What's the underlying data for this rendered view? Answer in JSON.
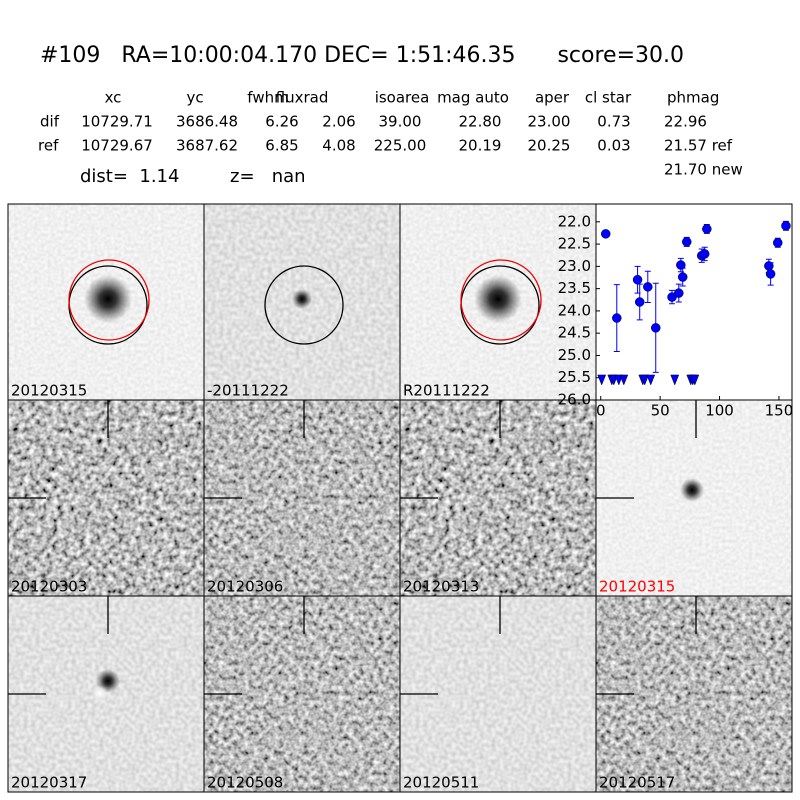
{
  "header": {
    "title": "#109   RA=10:00:04.170 DEC= 1:51:46.35      score=30.0"
  },
  "table": {
    "columns": [
      "xc",
      "yc",
      "fwhm",
      "fluxrad",
      "isoarea",
      "mag auto",
      "aper",
      "cl star",
      "phmag"
    ],
    "rows": [
      [
        "dif",
        "10729.71",
        "3686.48",
        "6.26",
        "2.06",
        "39.00",
        "22.80",
        "23.00",
        "0.73",
        "22.96"
      ],
      [
        "ref",
        "10729.67",
        "3687.62",
        "6.85",
        "4.08",
        "225.00",
        "20.19",
        "20.25",
        "0.03",
        "21.57 ref"
      ]
    ],
    "extra": "21.70 new"
  },
  "info": {
    "dist": "dist=  1.14",
    "z": "z=   nan"
  },
  "stamps": [
    {
      "label": "20120315"
    },
    {
      "label": "-20111222"
    },
    {
      "label": "R20111222"
    },
    {
      "label": "20120303"
    },
    {
      "label": "20120306"
    },
    {
      "label": "20120313"
    },
    {
      "label": "20120315",
      "label_color": "#ff0000"
    },
    {
      "label": "20120317"
    },
    {
      "label": "20120508"
    },
    {
      "label": "20120511"
    },
    {
      "label": "20120517"
    }
  ],
  "chart_data": {
    "type": "scatter",
    "series": [
      {
        "color": "#0000ff",
        "marker": "circle",
        "x": [
          4.2,
          13.5,
          31,
          32.8,
          39.6,
          46.3,
          60,
          65.7,
          67.4,
          69,
          72.4,
          85,
          87.5,
          89.3,
          141.5,
          143,
          149,
          155.9
        ],
        "values": [
          22.27,
          24.16,
          23.3,
          23.8,
          23.46,
          24.38,
          23.69,
          23.6,
          22.97,
          23.24,
          22.45,
          22.76,
          22.72,
          22.16,
          22.99,
          23.17,
          22.47,
          22.09
        ],
        "errors": [
          0.05,
          0.75,
          0.3,
          0.4,
          0.35,
          1.0,
          0.15,
          0.2,
          0.15,
          0.2,
          0.1,
          0.15,
          0.15,
          0.1,
          0.15,
          0.25,
          0.1,
          0.1
        ]
      },
      {
        "color": "#0000ff",
        "marker": "triangle-down",
        "x": [
          0.8,
          9.3,
          11,
          15.2,
          19.4,
          35.4,
          37,
          42.1,
          62.3,
          75.8,
          77.5,
          79.2
        ],
        "values": [
          25.55,
          25.55,
          25.55,
          25.55,
          25.55,
          25.55,
          25.55,
          25.55,
          25.55,
          25.55,
          25.55,
          25.55
        ]
      }
    ],
    "xlim": [
      -4,
      161
    ],
    "xticks": [
      0,
      50,
      100,
      150
    ],
    "ylim": [
      26.0,
      21.6
    ],
    "yticks": [
      {
        "value": 22,
        "label": "22.0"
      },
      {
        "value": 22.5,
        "label": "22.5"
      },
      {
        "value": 23,
        "label": "23.0"
      },
      {
        "value": 23.5,
        "label": "23.5"
      },
      {
        "value": 24,
        "label": "24.0"
      },
      {
        "value": 24.5,
        "label": "24.5"
      },
      {
        "value": 25,
        "label": "25.0"
      },
      {
        "value": 25.5,
        "label": "25.5"
      },
      {
        "value": 26,
        "label": "26.0"
      }
    ]
  }
}
